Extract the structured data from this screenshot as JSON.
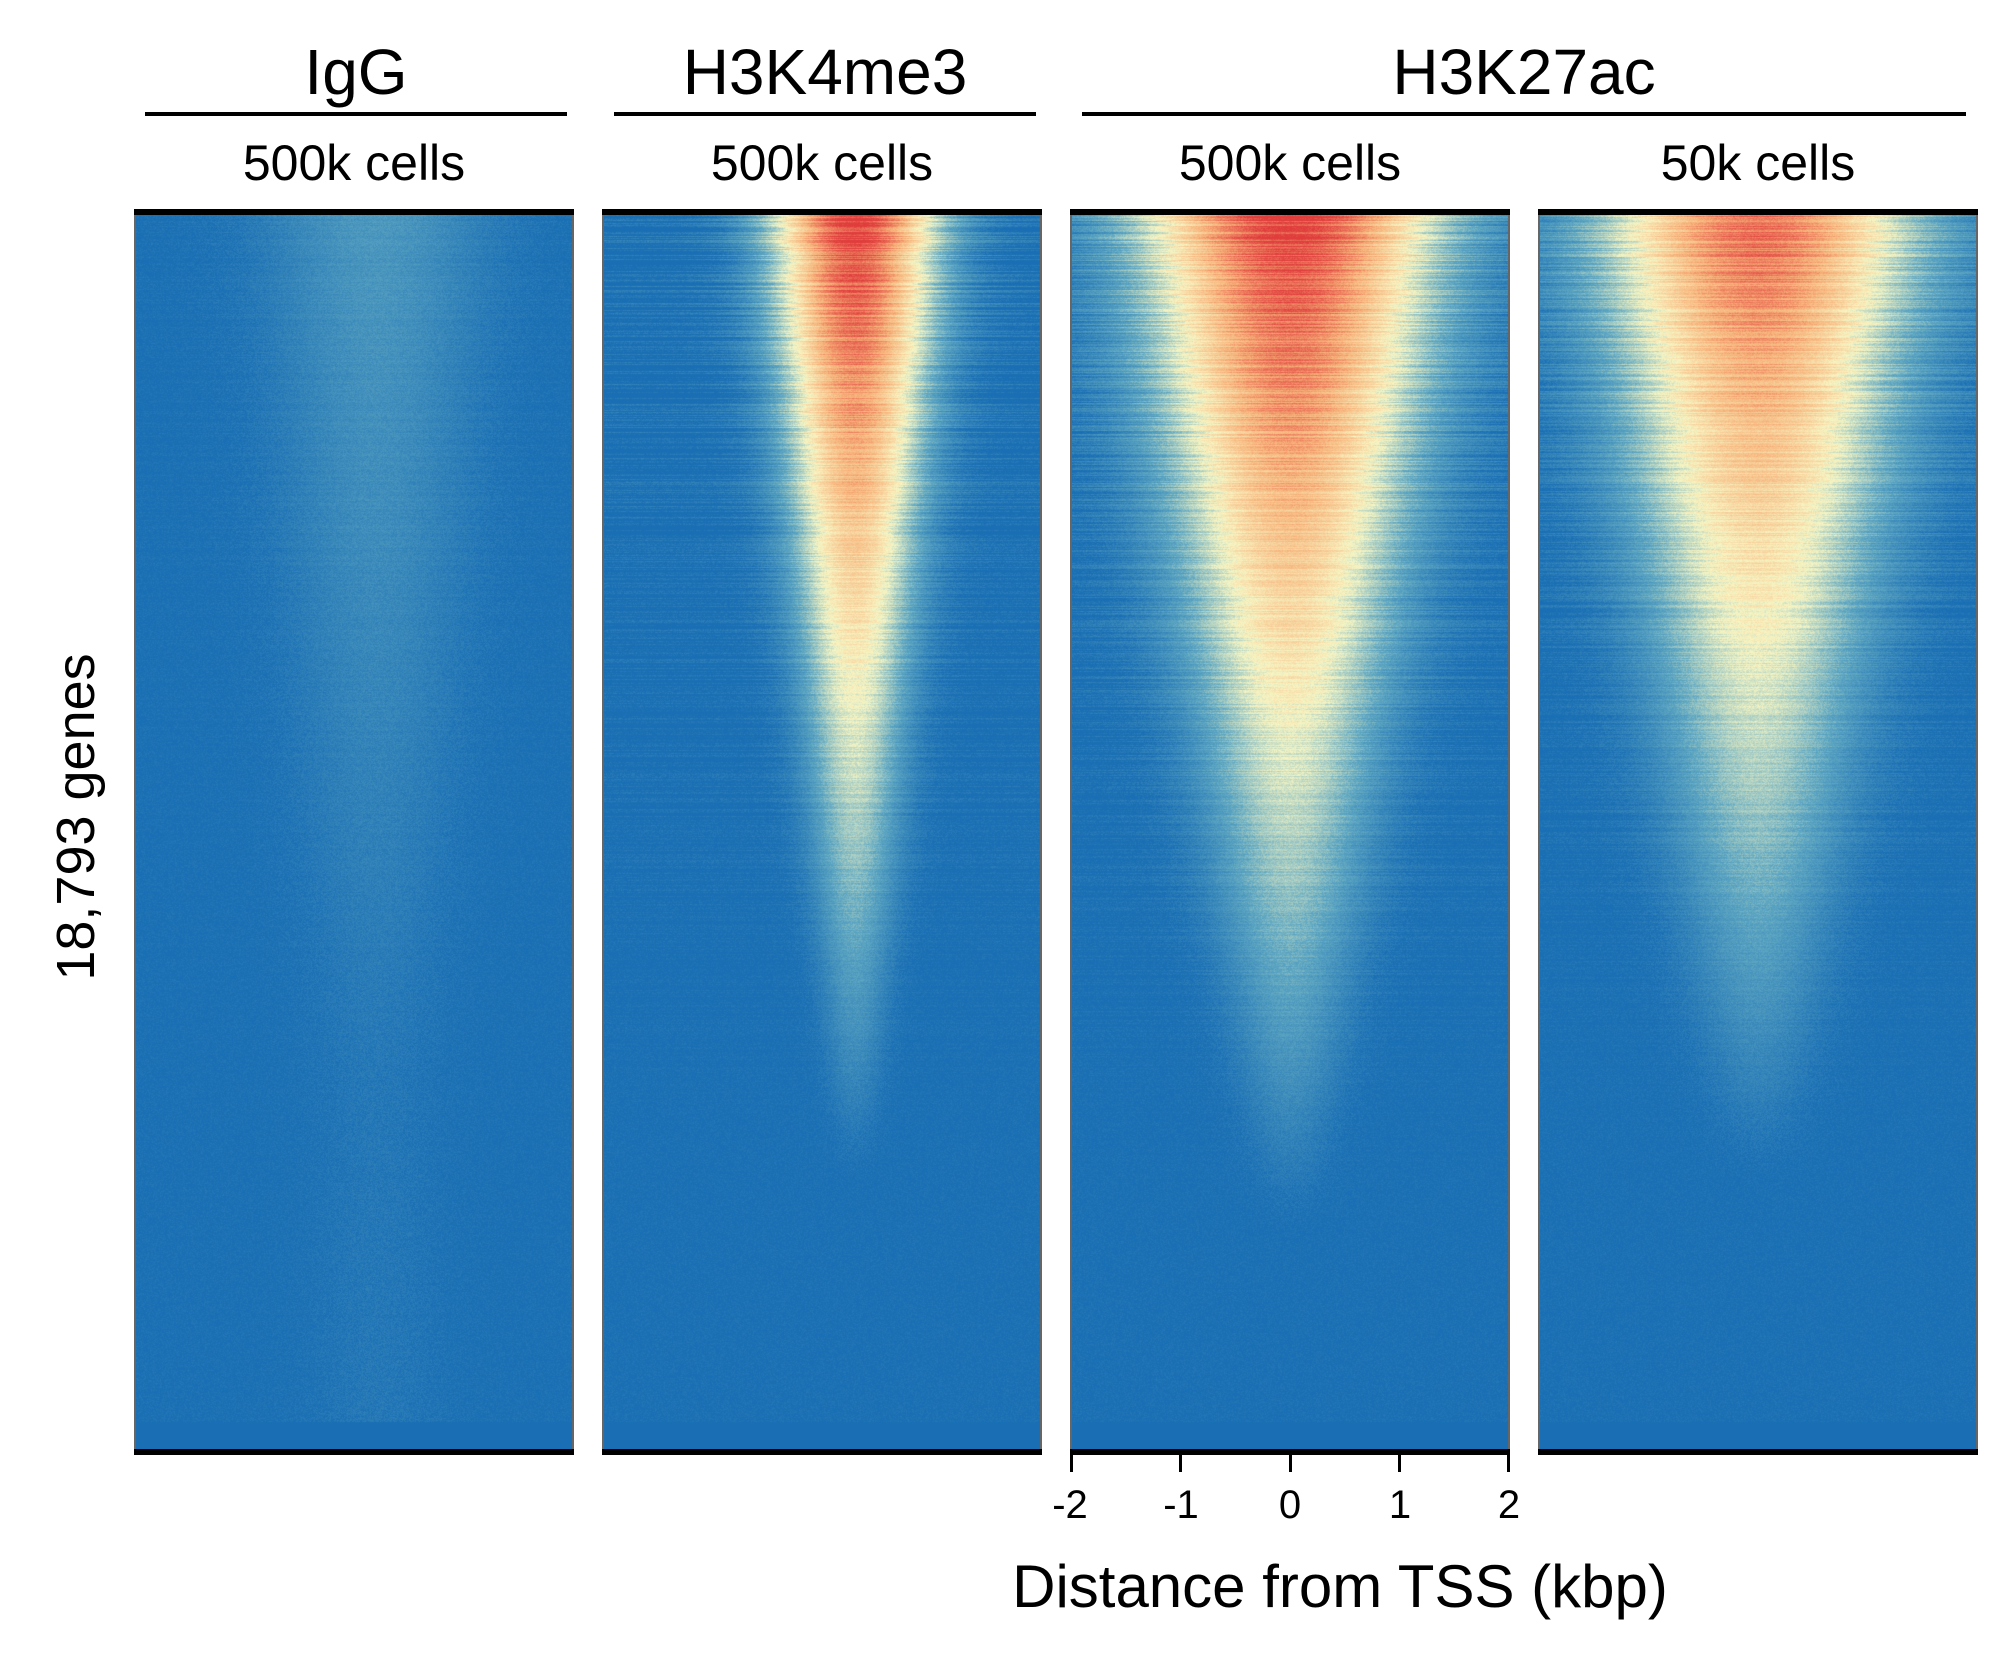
{
  "chart_data": {
    "type": "heatmap",
    "ylabel": "18,793 genes",
    "xlabel": "Distance from TSS (kbp)",
    "x_ticks": [
      "-2",
      "-1",
      "0",
      "1",
      "2"
    ],
    "x_range_kbp": [
      -2,
      2
    ],
    "n_genes": 18793,
    "groups": [
      {
        "title": "IgG",
        "panels": [
          "igg"
        ]
      },
      {
        "title": "H3K4me3",
        "panels": [
          "h3k4me3"
        ]
      },
      {
        "title": "H3K27ac",
        "panels": [
          "h3k27ac_500k",
          "h3k27ac_50k"
        ]
      }
    ],
    "panels": [
      {
        "id": "igg",
        "mark": "IgG",
        "cells": "500k cells",
        "peak": 0.14,
        "center_kbp": 0.2,
        "width_top_kbp": 1.3,
        "width_bottom_kbp": 0.8,
        "falloff": 0.7
      },
      {
        "id": "h3k4me3",
        "mark": "H3K4me3",
        "cells": "500k cells",
        "peak": 1.0,
        "center_kbp": 0.3,
        "width_top_kbp": 1.0,
        "width_bottom_kbp": 0.25,
        "falloff": 0.78
      },
      {
        "id": "h3k27ac_500k",
        "mark": "H3K27ac",
        "cells": "500k cells",
        "peak": 1.0,
        "center_kbp": 0.0,
        "width_top_kbp": 1.8,
        "width_bottom_kbp": 0.4,
        "falloff": 0.82
      },
      {
        "id": "h3k27ac_50k",
        "mark": "H3K27ac",
        "cells": "50k cells",
        "peak": 0.9,
        "center_kbp": 0.0,
        "width_top_kbp": 1.9,
        "width_bottom_kbp": 0.5,
        "falloff": 0.78
      }
    ],
    "colormap": [
      "#1a6fb4",
      "#5fa7c2",
      "#f7f6c4",
      "#f7b27a",
      "#e03c3c"
    ]
  }
}
